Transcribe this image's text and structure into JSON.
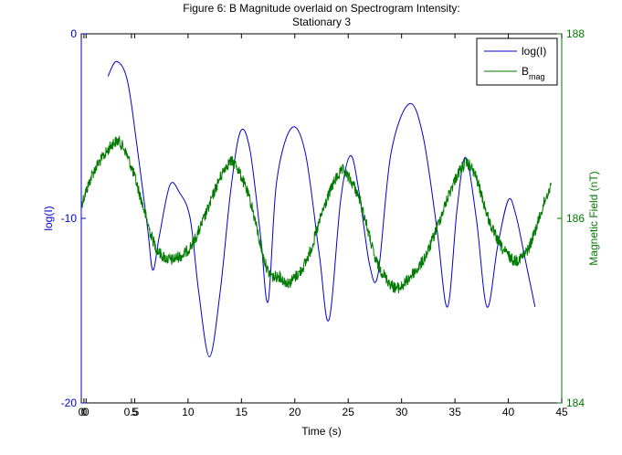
{
  "chart_data": {
    "type": "line",
    "title_lines": [
      "Figure 6: B Magnitude overlaid on Spectrogram Intensity:",
      "Stationary 3"
    ],
    "xlabel": "Time (s)",
    "ylabel_left": "log(I)",
    "ylabel_right": "Magnetic Field (nT)",
    "xlim": [
      0,
      45
    ],
    "ylim_left": [
      -20,
      0
    ],
    "ylim_right": [
      184,
      188
    ],
    "x_ticks": [
      "0",
      "0",
      "0",
      "0.5",
      "5",
      "10",
      "15",
      "20",
      "25",
      "30",
      "35",
      "40",
      "45"
    ],
    "y_ticks_left": [
      "0",
      "-10",
      "-20"
    ],
    "y_ticks_right": [
      "188",
      "186",
      "184"
    ],
    "legend": {
      "position": "top-right",
      "entries": [
        {
          "label": "log(I)",
          "sub": "",
          "color": "#0000cc"
        },
        {
          "label": "B",
          "sub": "mag",
          "color": "#007a00"
        }
      ]
    },
    "colors": {
      "left_axis": "#0000cc",
      "right_axis": "#007a00",
      "axes": "#000000"
    },
    "series": [
      {
        "name": "log(I)",
        "axis": "left",
        "color": "#0000cc",
        "x": [
          2.5,
          3.3,
          4.3,
          5.2,
          6.2,
          6.7,
          7.3,
          8.3,
          9.2,
          10.2,
          11.0,
          12.0,
          13.0,
          14.0,
          14.9,
          15.8,
          16.8,
          17.5,
          18.3,
          19.7,
          21.0,
          22.3,
          23.2,
          24.3,
          25.2,
          26.0,
          27.0,
          27.8,
          29.0,
          30.7,
          32.0,
          33.3,
          34.3,
          35.2,
          36.0,
          37.0,
          38.0,
          39.0,
          40.0,
          40.7,
          41.5,
          42.5
        ],
        "y": [
          -2.3,
          -1.5,
          -2.5,
          -6.0,
          -10.5,
          -12.8,
          -11.0,
          -8.2,
          -8.6,
          -10.0,
          -14.0,
          -17.5,
          -14.0,
          -8.5,
          -5.3,
          -6.3,
          -11.0,
          -14.5,
          -8.0,
          -5.1,
          -6.5,
          -12.0,
          -15.5,
          -9.0,
          -6.6,
          -8.5,
          -12.5,
          -13.0,
          -6.5,
          -3.8,
          -5.5,
          -10.5,
          -14.8,
          -9.5,
          -6.7,
          -10.0,
          -14.8,
          -11.5,
          -9.0,
          -9.8,
          -12.0,
          -14.8
        ]
      },
      {
        "name": "B",
        "axis": "right",
        "color": "#007a00",
        "x": [
          0.0,
          0.5,
          1.0,
          1.5,
          2.0,
          2.5,
          3.0,
          3.5,
          4.0,
          4.5,
          5.0,
          5.5,
          6.0,
          6.5,
          7.0,
          7.5,
          8.0,
          8.5,
          9.0,
          9.5,
          10.0,
          10.5,
          11.0,
          11.5,
          12.0,
          12.5,
          13.0,
          13.5,
          14.0,
          14.5,
          15.0,
          15.5,
          16.0,
          16.5,
          17.0,
          17.5,
          18.0,
          18.5,
          19.0,
          19.5,
          20.0,
          20.5,
          21.0,
          21.5,
          22.0,
          22.5,
          23.0,
          23.5,
          24.0,
          24.5,
          25.0,
          25.5,
          26.0,
          26.5,
          27.0,
          27.5,
          28.0,
          28.5,
          29.0,
          29.5,
          30.0,
          30.5,
          31.0,
          31.5,
          32.0,
          32.5,
          33.0,
          33.5,
          34.0,
          34.5,
          35.0,
          35.5,
          36.0,
          36.5,
          37.0,
          37.5,
          38.0,
          38.5,
          39.0,
          39.5,
          40.0,
          40.5,
          41.0,
          41.5,
          42.0,
          42.5,
          43.0,
          43.5,
          44.0
        ],
        "y": [
          186.15,
          186.31,
          186.47,
          186.58,
          186.66,
          186.74,
          186.82,
          186.84,
          186.76,
          186.62,
          186.45,
          186.25,
          186.04,
          185.83,
          185.68,
          185.6,
          185.56,
          185.55,
          185.58,
          185.6,
          185.66,
          185.74,
          185.86,
          186.0,
          186.14,
          186.3,
          186.44,
          186.56,
          186.62,
          186.58,
          186.45,
          186.3,
          186.12,
          185.86,
          185.6,
          185.42,
          185.36,
          185.38,
          185.32,
          185.3,
          185.36,
          185.42,
          185.52,
          185.66,
          185.84,
          186.04,
          186.2,
          186.35,
          186.46,
          186.52,
          186.45,
          186.36,
          186.23,
          186.03,
          185.8,
          185.56,
          185.45,
          185.36,
          185.28,
          185.24,
          185.26,
          185.32,
          185.4,
          185.45,
          185.54,
          185.65,
          185.8,
          185.96,
          186.12,
          186.28,
          186.42,
          186.53,
          186.6,
          186.56,
          186.44,
          186.25,
          186.04,
          185.88,
          185.76,
          185.66,
          185.6,
          185.54,
          185.56,
          185.6,
          185.7,
          185.86,
          186.04,
          186.22,
          186.36
        ]
      }
    ]
  }
}
